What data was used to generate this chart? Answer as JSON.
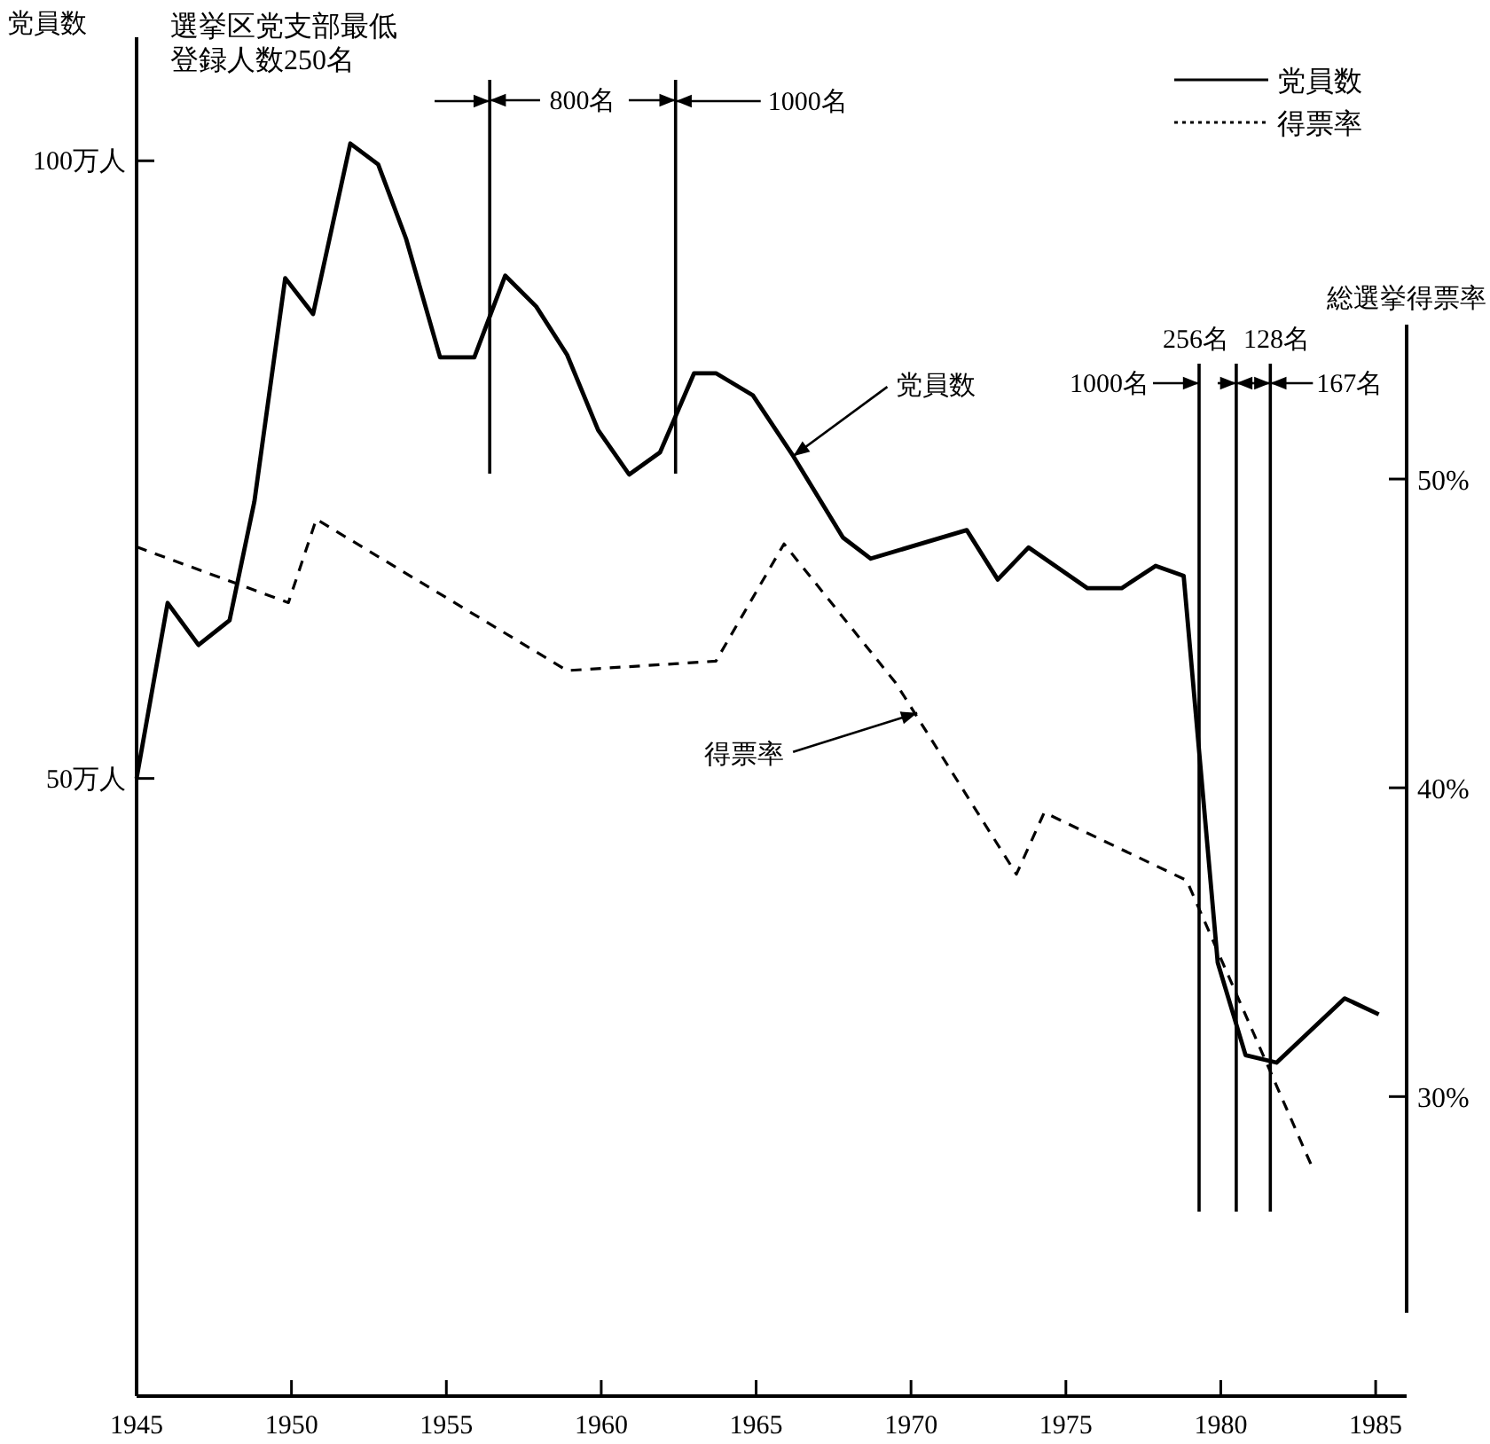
{
  "chart_data": {
    "type": "line",
    "ylabel": "党員数",
    "y2label": "総選挙得票率",
    "xlim": [
      1945,
      1986
    ],
    "xticks": [
      1945,
      1950,
      1955,
      1960,
      1965,
      1970,
      1975,
      1980,
      1985
    ],
    "ylim": [
      0,
      110
    ],
    "yticks": [
      {
        "value": 50,
        "label": "50万人"
      },
      {
        "value": 100,
        "label": "100万人"
      }
    ],
    "y2lim": [
      23,
      55
    ],
    "y2ticks": [
      {
        "value": 30,
        "label": "30%"
      },
      {
        "value": 40,
        "label": "40%"
      },
      {
        "value": 50,
        "label": "50%"
      }
    ],
    "legend": "top right",
    "grid": false,
    "series": [
      {
        "name": "党員数",
        "color": "#000000",
        "line_style": "solid",
        "x": [
          1945.0,
          1946.0,
          1947.0,
          1948.0,
          1948.8,
          1949.8,
          1950.7,
          1951.9,
          1952.8,
          1953.7,
          1954.8,
          1955.9,
          1956.9,
          1957.9,
          1958.9,
          1959.9,
          1960.9,
          1961.9,
          1963.0,
          1963.7,
          1964.9,
          1966.2,
          1967.8,
          1968.7,
          1971.8,
          1972.8,
          1973.8,
          1975.7,
          1976.8,
          1977.9,
          1978.8,
          1979.9,
          1980.8,
          1981.8,
          1984.0,
          1985.1
        ],
        "values": [
          50.0,
          64.2,
          60.8,
          62.8,
          72.4,
          90.5,
          87.6,
          101.4,
          99.7,
          93.7,
          84.1,
          84.1,
          90.7,
          88.2,
          84.3,
          78.2,
          74.6,
          76.4,
          82.8,
          82.8,
          81.0,
          76.1,
          69.5,
          67.8,
          70.1,
          66.1,
          68.7,
          65.4,
          65.4,
          67.2,
          66.4,
          35.1,
          27.6,
          27.0,
          32.2,
          30.9
        ]
      },
      {
        "name": "得票率",
        "color": "#000000",
        "line_style": "dashed",
        "axis": "y2",
        "x": [
          1945.0,
          1949.9,
          1950.8,
          1958.9,
          1963.7,
          1965.9,
          1969.5,
          1973.4,
          1974.3,
          1978.9,
          1983.0
        ],
        "values": [
          47.8,
          46.0,
          48.7,
          43.8,
          44.1,
          47.9,
          43.4,
          37.2,
          39.2,
          37.0,
          27.6
        ]
      }
    ],
    "ref_lines": [
      {
        "axis": "x",
        "value": 1956.4
      },
      {
        "axis": "x",
        "value": 1962.4
      },
      {
        "axis": "x",
        "value": 1979.3
      },
      {
        "axis": "x",
        "value": 1980.5
      },
      {
        "axis": "x",
        "value": 1981.6
      }
    ],
    "annotations": [
      "選挙区党支部最低",
      "登録人数250名",
      {
        "text": "800名",
        "x": 1956.4,
        "y": 104.9
      },
      "1000名",
      "1000名",
      "256名",
      "128名",
      "167名",
      {
        "text": "党員数",
        "x": 1966.2,
        "y": 76.1
      },
      {
        "text": "得票率",
        "x": 1970.2,
        "y": 55.3
      }
    ]
  }
}
